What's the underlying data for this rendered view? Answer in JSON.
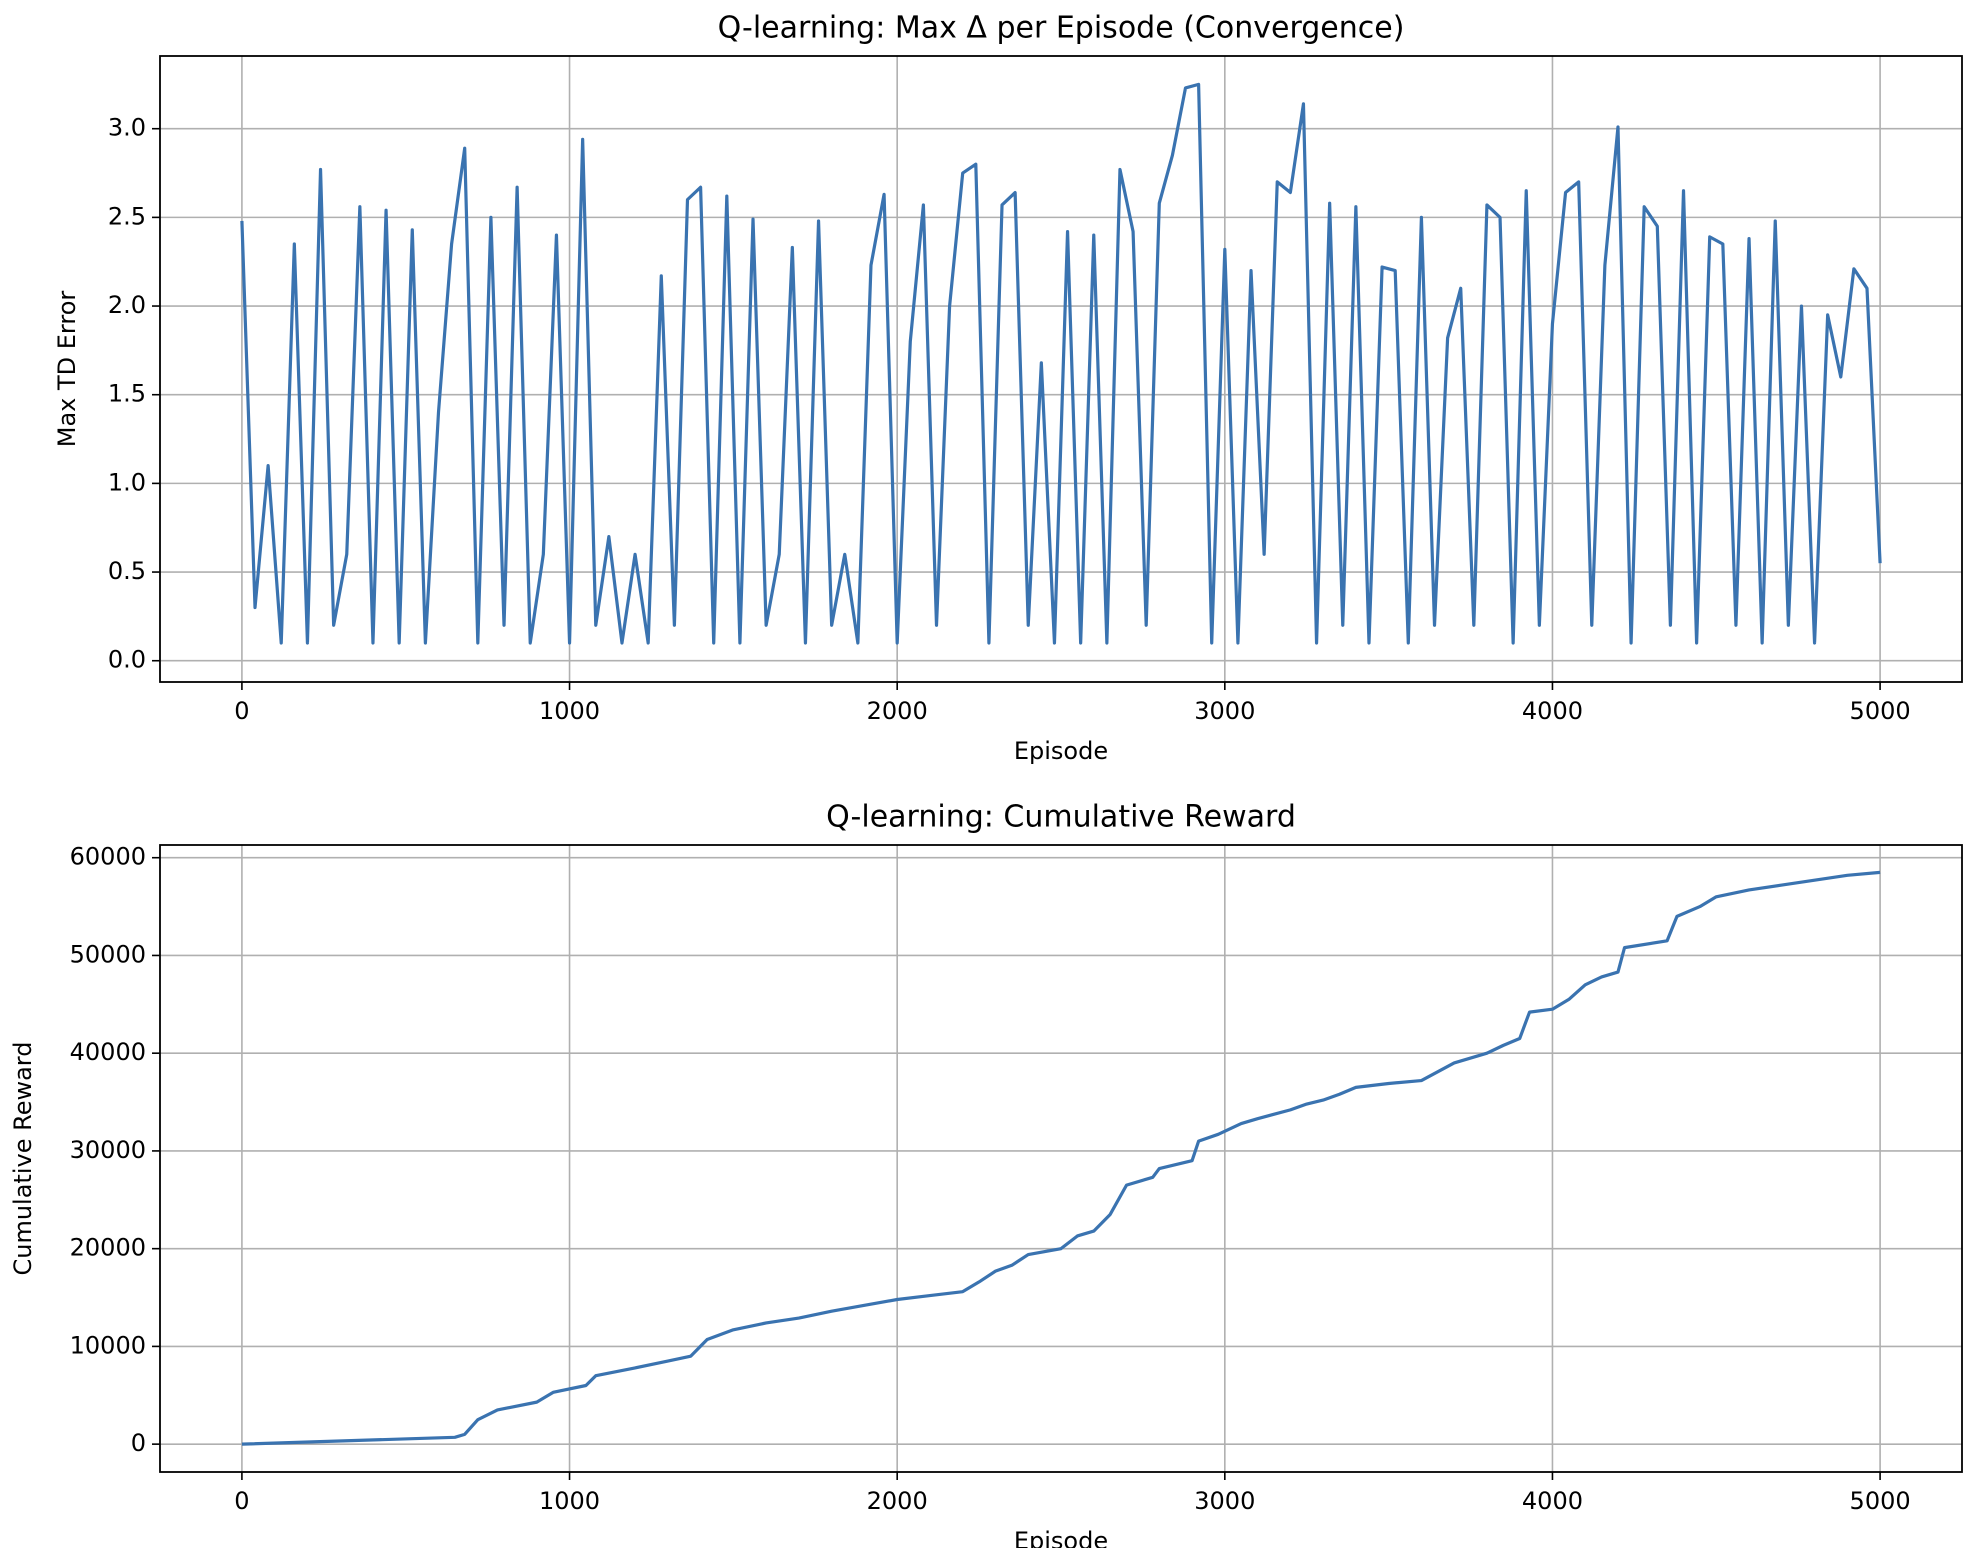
{
  "chart_data": [
    {
      "type": "line",
      "title": "Q-learning: Max Δ per Episode (Convergence)",
      "x_label": "Episode",
      "y_label": "Max TD Error",
      "x": [
        0,
        40,
        80,
        120,
        160,
        200,
        240,
        280,
        320,
        360,
        400,
        440,
        480,
        520,
        560,
        600,
        640,
        680,
        720,
        760,
        800,
        840,
        880,
        920,
        960,
        1000,
        1040,
        1080,
        1120,
        1160,
        1200,
        1240,
        1280,
        1320,
        1360,
        1400,
        1440,
        1480,
        1520,
        1560,
        1600,
        1640,
        1680,
        1720,
        1760,
        1800,
        1840,
        1880,
        1920,
        1960,
        2000,
        2040,
        2080,
        2120,
        2160,
        2200,
        2240,
        2280,
        2320,
        2360,
        2400,
        2440,
        2480,
        2520,
        2560,
        2600,
        2640,
        2680,
        2720,
        2760,
        2800,
        2840,
        2880,
        2920,
        2960,
        3000,
        3040,
        3080,
        3120,
        3160,
        3200,
        3240,
        3280,
        3320,
        3360,
        3400,
        3440,
        3480,
        3520,
        3560,
        3600,
        3640,
        3680,
        3720,
        3760,
        3800,
        3840,
        3880,
        3920,
        3960,
        4000,
        4040,
        4080,
        4120,
        4160,
        4200,
        4240,
        4280,
        4320,
        4360,
        4400,
        4440,
        4480,
        4520,
        4560,
        4600,
        4640,
        4680,
        4720,
        4760,
        4800,
        4840,
        4880,
        4920,
        4960,
        5000
      ],
      "series": [
        {
          "name": "Max TD Error",
          "color": "#3a73b0",
          "values": [
            2.48,
            0.3,
            1.1,
            0.1,
            2.35,
            0.1,
            2.77,
            0.2,
            0.6,
            2.56,
            0.1,
            2.54,
            0.1,
            2.43,
            0.1,
            1.4,
            2.35,
            2.89,
            0.1,
            2.5,
            0.2,
            2.67,
            0.1,
            0.6,
            2.4,
            0.1,
            2.94,
            0.2,
            0.7,
            0.1,
            0.6,
            0.1,
            2.17,
            0.2,
            2.6,
            2.67,
            0.1,
            2.62,
            0.1,
            2.49,
            0.2,
            0.6,
            2.33,
            0.1,
            2.48,
            0.2,
            0.6,
            0.1,
            2.23,
            2.63,
            0.1,
            1.8,
            2.57,
            0.2,
            2.0,
            2.75,
            2.8,
            0.1,
            2.57,
            2.64,
            0.2,
            1.68,
            0.1,
            2.42,
            0.1,
            2.4,
            0.1,
            2.77,
            2.42,
            0.2,
            2.58,
            2.85,
            3.23,
            3.25,
            0.1,
            2.32,
            0.1,
            2.2,
            0.6,
            2.7,
            2.64,
            3.14,
            0.1,
            2.58,
            0.2,
            2.56,
            0.1,
            2.22,
            2.2,
            0.1,
            2.5,
            0.2,
            1.82,
            2.1,
            0.2,
            2.57,
            2.5,
            0.1,
            2.65,
            0.2,
            1.9,
            2.64,
            2.7,
            0.2,
            2.23,
            3.01,
            0.1,
            2.56,
            2.45,
            0.2,
            2.65,
            0.1,
            2.39,
            2.35,
            0.2,
            2.38,
            0.1,
            2.48,
            0.2,
            2.0,
            0.1,
            1.95,
            1.6,
            2.21,
            2.1,
            0.55
          ]
        }
      ],
      "xlim": [
        -250,
        5250
      ],
      "xticks": [
        0,
        1000,
        2000,
        3000,
        4000,
        5000
      ],
      "ylim": [
        -0.12,
        3.41
      ],
      "yticks": [
        {
          "value": 0,
          "label": "0.0"
        },
        0.5,
        {
          "value": 1,
          "label": "1.0"
        },
        1.5,
        {
          "value": 2,
          "label": "2.0"
        },
        2.5,
        {
          "value": 3,
          "label": "3.0"
        }
      ],
      "grid": true
    },
    {
      "type": "line",
      "title": "Q-learning: Cumulative Reward",
      "x_label": "Episode",
      "y_label": "Cumulative Reward",
      "x": [
        0,
        650,
        680,
        720,
        780,
        900,
        950,
        1050,
        1080,
        1200,
        1300,
        1370,
        1420,
        1500,
        1600,
        1700,
        1800,
        1900,
        2000,
        2100,
        2200,
        2250,
        2300,
        2350,
        2400,
        2500,
        2550,
        2600,
        2650,
        2700,
        2780,
        2800,
        2900,
        2920,
        2980,
        3050,
        3100,
        3200,
        3250,
        3300,
        3350,
        3400,
        3500,
        3600,
        3700,
        3800,
        3850,
        3900,
        3930,
        4000,
        4050,
        4100,
        4150,
        4200,
        4220,
        4350,
        4380,
        4450,
        4500,
        4600,
        4700,
        4800,
        4900,
        5000
      ],
      "series": [
        {
          "name": "Cumulative Reward",
          "color": "#3a73b0",
          "values": [
            0,
            700,
            1000,
            2500,
            3500,
            4300,
            5300,
            6000,
            7000,
            7800,
            8500,
            9000,
            10700,
            11700,
            12400,
            12900,
            13600,
            14200,
            14800,
            15200,
            15600,
            16600,
            17700,
            18300,
            19400,
            20000,
            21300,
            21800,
            23500,
            26500,
            27300,
            28200,
            29000,
            31000,
            31700,
            32800,
            33300,
            34200,
            34800,
            35200,
            35800,
            36500,
            36900,
            37200,
            39000,
            40000,
            40800,
            41500,
            44200,
            44500,
            45500,
            47000,
            47800,
            48300,
            50800,
            51500,
            54000,
            55000,
            56000,
            56700,
            57200,
            57700,
            58200,
            58500
          ]
        }
      ],
      "xlim": [
        -250,
        5250
      ],
      "xticks": [
        0,
        1000,
        2000,
        3000,
        4000,
        5000
      ],
      "ylim": [
        -2850,
        61300
      ],
      "yticks": [
        0,
        10000,
        20000,
        30000,
        40000,
        50000,
        60000
      ],
      "grid": true
    }
  ]
}
